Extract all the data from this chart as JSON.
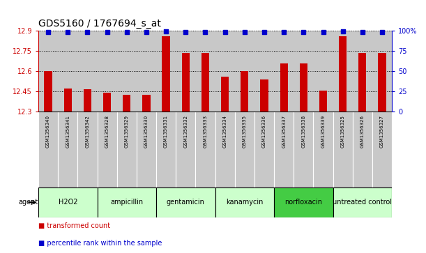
{
  "title": "GDS5160 / 1767694_s_at",
  "samples": [
    "GSM1356340",
    "GSM1356341",
    "GSM1356342",
    "GSM1356328",
    "GSM1356329",
    "GSM1356330",
    "GSM1356331",
    "GSM1356332",
    "GSM1356333",
    "GSM1356334",
    "GSM1356335",
    "GSM1356336",
    "GSM1356337",
    "GSM1356338",
    "GSM1356339",
    "GSM1356325",
    "GSM1356326",
    "GSM1356327"
  ],
  "bar_values": [
    12.6,
    12.47,
    12.465,
    12.44,
    12.42,
    12.422,
    12.855,
    12.735,
    12.73,
    12.555,
    12.6,
    12.535,
    12.655,
    12.655,
    12.455,
    12.855,
    12.73,
    12.73
  ],
  "percentile_values": [
    98,
    98,
    98,
    98,
    98,
    98,
    99,
    98,
    98,
    98,
    98,
    98,
    98,
    98,
    98,
    99,
    98,
    98
  ],
  "groups": [
    {
      "name": "H2O2",
      "start": 0,
      "end": 2,
      "color": "#ccffcc"
    },
    {
      "name": "ampicillin",
      "start": 3,
      "end": 5,
      "color": "#ccffcc"
    },
    {
      "name": "gentamicin",
      "start": 6,
      "end": 8,
      "color": "#ccffcc"
    },
    {
      "name": "kanamycin",
      "start": 9,
      "end": 11,
      "color": "#ccffcc"
    },
    {
      "name": "norfloxacin",
      "start": 12,
      "end": 14,
      "color": "#44cc44"
    },
    {
      "name": "untreated control",
      "start": 15,
      "end": 17,
      "color": "#ccffcc"
    }
  ],
  "ylim": [
    12.3,
    12.9
  ],
  "yticks": [
    12.3,
    12.45,
    12.6,
    12.75,
    12.9
  ],
  "ytick_labels": [
    "12.3",
    "12.45",
    "12.6",
    "12.75",
    "12.9"
  ],
  "right_yticks": [
    0,
    25,
    50,
    75,
    100
  ],
  "right_ytick_labels": [
    "0",
    "25",
    "50",
    "75",
    "100%"
  ],
  "bar_color": "#cc0000",
  "dot_color": "#0000cc",
  "background_sample": "#c8c8c8",
  "title_fontsize": 10,
  "tick_fontsize": 7,
  "sample_fontsize": 5,
  "group_fontsize": 7,
  "legend_fontsize": 7
}
